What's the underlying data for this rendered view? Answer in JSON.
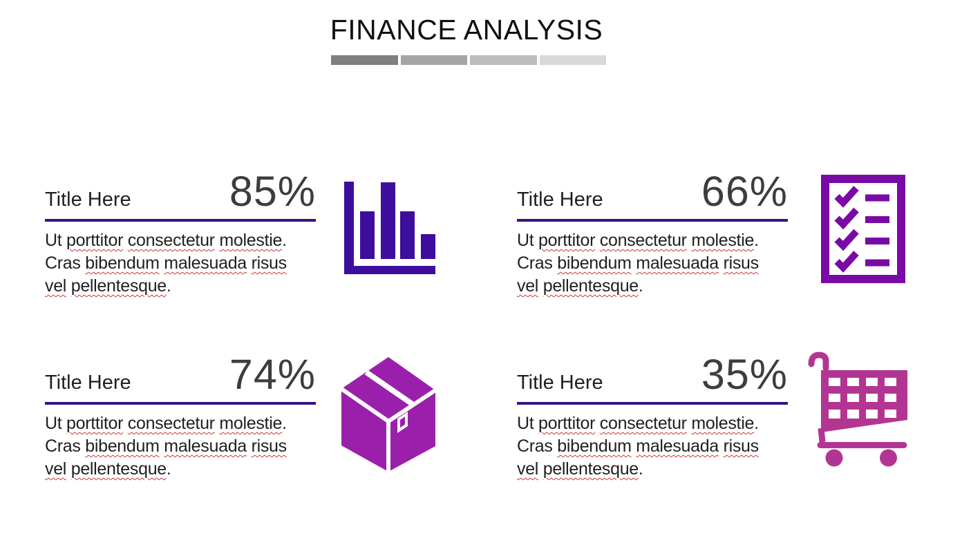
{
  "slide": {
    "title": "FINANCE ANALYSIS",
    "progress_segments": [
      {
        "color": "#7f7f7f"
      },
      {
        "color": "#a5a5a5"
      },
      {
        "color": "#bdbdbd"
      },
      {
        "color": "#d9d9d9"
      }
    ]
  },
  "cards": [
    {
      "title": "Title Here",
      "percent": "85%",
      "icon": "bar-chart-icon",
      "icon_color": "#3e0d9e"
    },
    {
      "title": "Title Here",
      "percent": "66%",
      "icon": "checklist-icon",
      "icon_color": "#7a0aa5"
    },
    {
      "title": "Title Here",
      "percent": "74%",
      "icon": "package-box-icon",
      "icon_color": "#9a20ab"
    },
    {
      "title": "Title Here",
      "percent": "35%",
      "icon": "shopping-cart-icon",
      "icon_color": "#b33592"
    }
  ],
  "body": {
    "full_text": "Ut porttitor consectetur molestie. Cras bibendum malesuada risus vel pellentesque.",
    "lines": [
      [
        {
          "text": "Ut ",
          "misspelled": false
        },
        {
          "text": "porttitor",
          "misspelled": true
        },
        {
          "text": " ",
          "misspelled": false
        },
        {
          "text": "consectetur",
          "misspelled": true
        },
        {
          "text": " ",
          "misspelled": false
        },
        {
          "text": "molestie",
          "misspelled": true
        },
        {
          "text": ".",
          "misspelled": false
        }
      ],
      [
        {
          "text": "Cras ",
          "misspelled": false
        },
        {
          "text": "bibendum",
          "misspelled": true
        },
        {
          "text": " ",
          "misspelled": false
        },
        {
          "text": "malesuada",
          "misspelled": true
        },
        {
          "text": " ",
          "misspelled": false
        },
        {
          "text": "risus",
          "misspelled": true
        }
      ],
      [
        {
          "text": "vel",
          "misspelled": true
        },
        {
          "text": " ",
          "misspelled": false
        },
        {
          "text": "pellentesque",
          "misspelled": true
        },
        {
          "text": ".",
          "misspelled": false
        }
      ]
    ]
  },
  "colors": {
    "divider": "#38127f",
    "headline_text": "#101010",
    "title_text": "#202020",
    "percent_text": "#3d3d3d",
    "body_text": "#1f1f1f",
    "spellcheck_underline": "#cc3333"
  }
}
